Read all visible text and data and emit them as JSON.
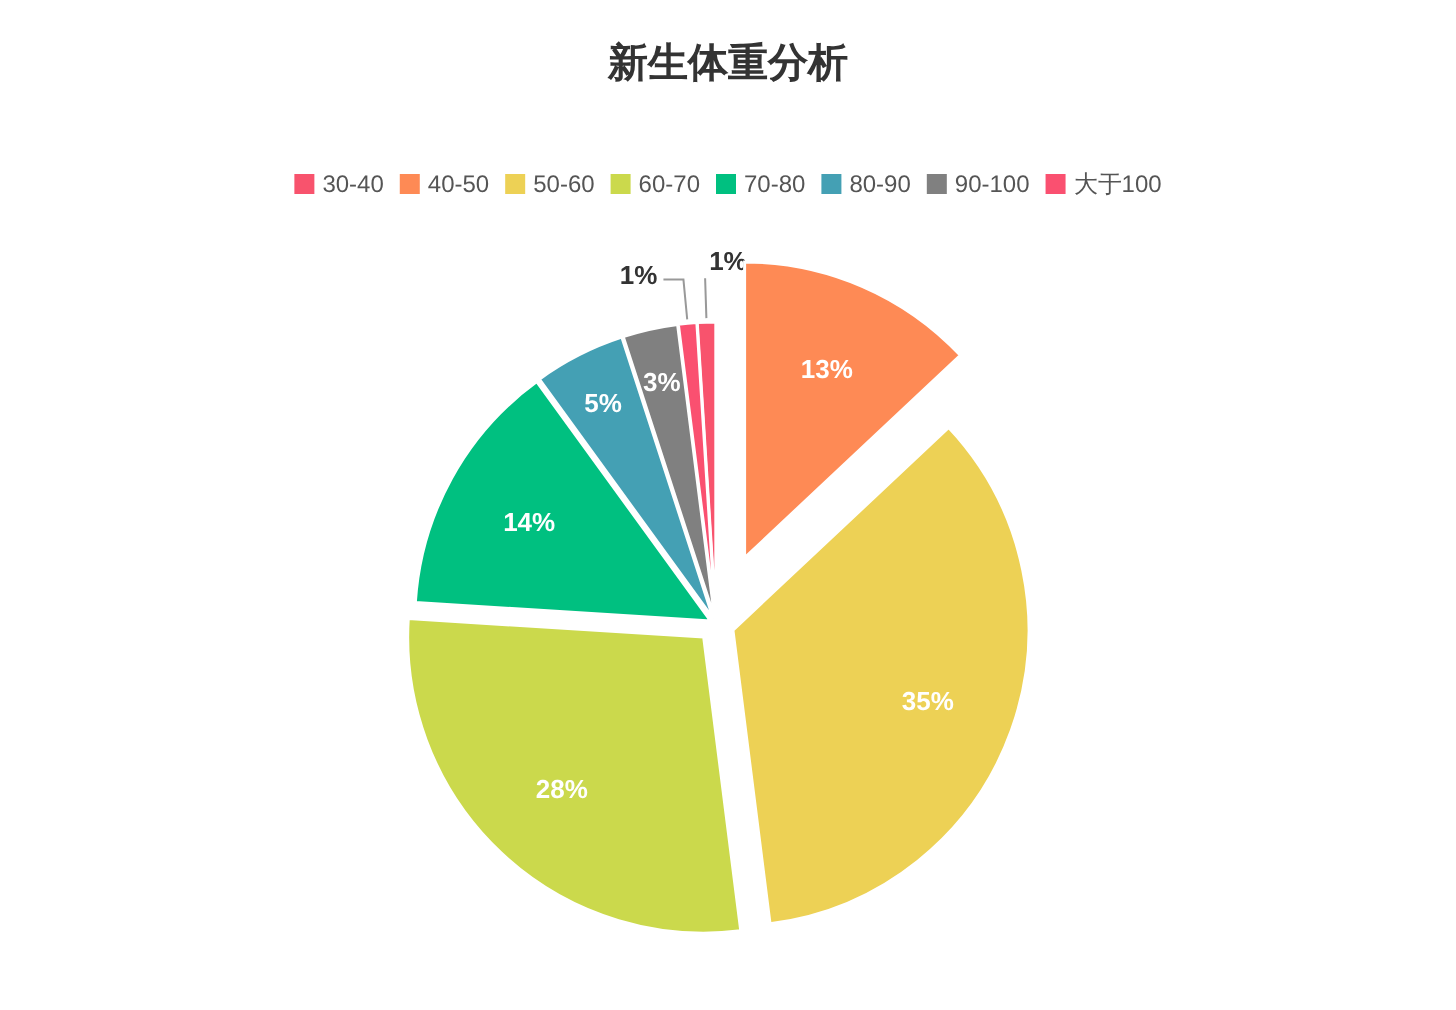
{
  "chart_data": {
    "type": "pie",
    "title": "新生体重分析",
    "categories": [
      "30-40",
      "40-50",
      "50-60",
      "60-70",
      "70-80",
      "80-90",
      "90-100",
      "大于100"
    ],
    "values": [
      1,
      13,
      35,
      28,
      14,
      5,
      3,
      1
    ],
    "colors": [
      "#f8536d",
      "#fe8a55",
      "#edd155",
      "#cbd94c",
      "#00c080",
      "#44a0b4",
      "#808080",
      "#fa5070"
    ],
    "value_labels": [
      "1%",
      "13%",
      "35%",
      "28%",
      "14%",
      "5%",
      "3%",
      "1%"
    ],
    "legend": "top"
  }
}
